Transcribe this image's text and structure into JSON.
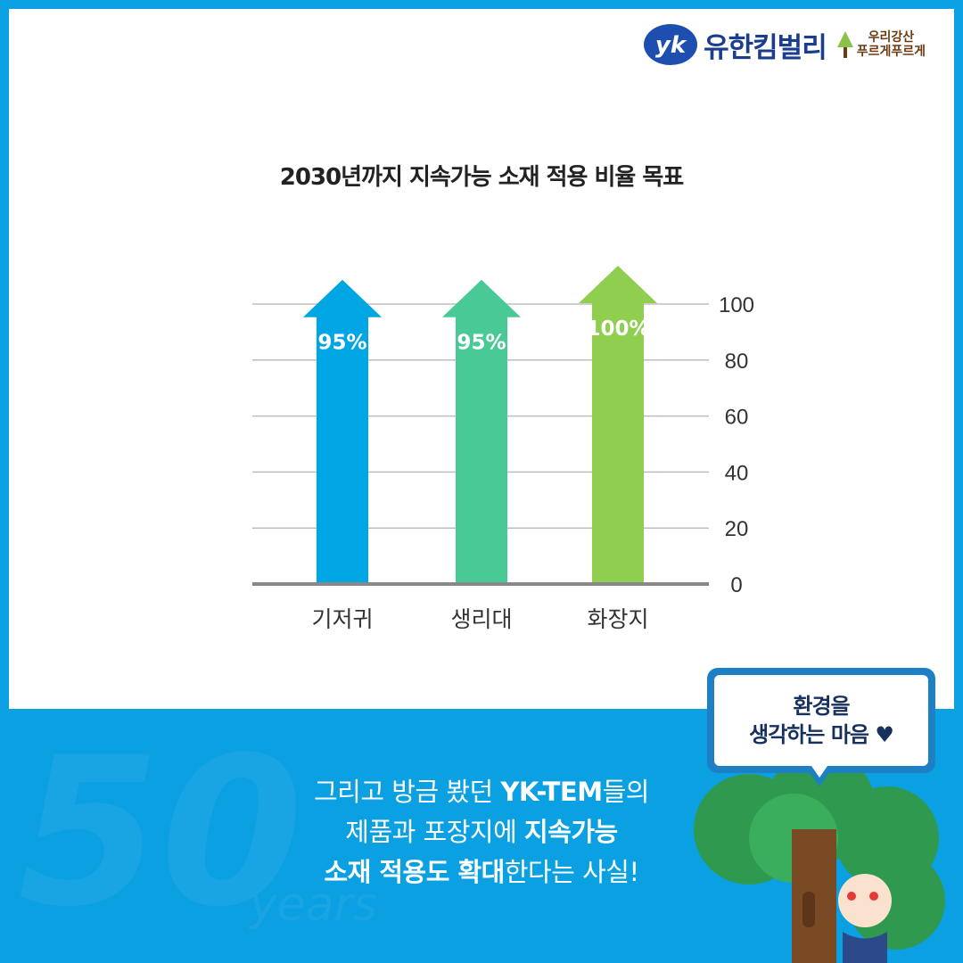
{
  "brand": {
    "name": "유한킴벌리",
    "slogan_line1": "우리강산",
    "slogan_line2": "푸르게푸르게"
  },
  "chart_data": {
    "type": "bar",
    "title": "2030년까지 지속가능 소재 적용 비율 목표",
    "categories": [
      "기저귀",
      "생리대",
      "화장지"
    ],
    "values": [
      95,
      95,
      100
    ],
    "value_labels": [
      "95%",
      "95%",
      "100%"
    ],
    "ylim": [
      0,
      100
    ],
    "yticks": [
      0,
      20,
      40,
      60,
      80,
      100
    ],
    "y_axis_side": "right",
    "grid": true,
    "colors": [
      "#00a6e4",
      "#48c996",
      "#8fce4f"
    ]
  },
  "footer": {
    "line1_a": "그리고 방금 봤던 ",
    "line1_b": "YK-TEM",
    "line1_c": "들의",
    "line2_a": "제품과 포장지에 ",
    "line2_b": "지속가능",
    "line3_a": "소재 적용도 확대",
    "line3_b": "한다는 사실!"
  },
  "bubble": {
    "line1": "환경을",
    "line2": "생각하는 마음 ♥"
  },
  "background_deco": {
    "big": "50",
    "small": "years"
  },
  "colors": {
    "frame": "#0aa0e2",
    "brand": "#1a3d8f"
  }
}
